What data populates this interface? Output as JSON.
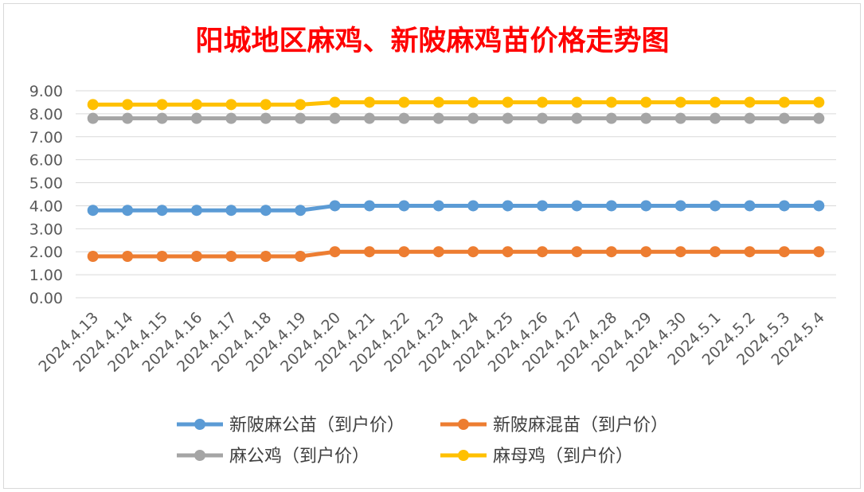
{
  "chart_data": {
    "type": "line",
    "title": "阳城地区麻鸡、新陂麻鸡苗价格走势图",
    "xlabel": "",
    "ylabel": "",
    "ylim": [
      0,
      9
    ],
    "ytick_step": 1,
    "ytick_labels": [
      "0.00",
      "1.00",
      "2.00",
      "3.00",
      "4.00",
      "5.00",
      "6.00",
      "7.00",
      "8.00",
      "9.00"
    ],
    "grid": "horizontal",
    "legend": "bottom",
    "categories": [
      "2024.4.13",
      "2024.4.14",
      "2024.4.15",
      "2024.4.16",
      "2024.4.17",
      "2024.4.18",
      "2024.4.19",
      "2024.4.20",
      "2024.4.21",
      "2024.4.22",
      "2024.4.23",
      "2024.4.24",
      "2024.4.25",
      "2024.4.26",
      "2024.4.27",
      "2024.4.28",
      "2024.4.29",
      "2024.4.30",
      "2024.5.1",
      "2024.5.2",
      "2024.5.3",
      "2024.5.4"
    ],
    "series": [
      {
        "name": "新陂麻公苗（到户价）",
        "color": "#5b9bd5",
        "values": [
          3.8,
          3.8,
          3.8,
          3.8,
          3.8,
          3.8,
          3.8,
          4.0,
          4.0,
          4.0,
          4.0,
          4.0,
          4.0,
          4.0,
          4.0,
          4.0,
          4.0,
          4.0,
          4.0,
          4.0,
          4.0,
          4.0
        ]
      },
      {
        "name": "新陂麻混苗（到户价）",
        "color": "#ed7d31",
        "values": [
          1.8,
          1.8,
          1.8,
          1.8,
          1.8,
          1.8,
          1.8,
          2.0,
          2.0,
          2.0,
          2.0,
          2.0,
          2.0,
          2.0,
          2.0,
          2.0,
          2.0,
          2.0,
          2.0,
          2.0,
          2.0,
          2.0
        ]
      },
      {
        "name": "麻公鸡（到户价）",
        "color": "#a5a5a5",
        "values": [
          7.8,
          7.8,
          7.8,
          7.8,
          7.8,
          7.8,
          7.8,
          7.8,
          7.8,
          7.8,
          7.8,
          7.8,
          7.8,
          7.8,
          7.8,
          7.8,
          7.8,
          7.8,
          7.8,
          7.8,
          7.8,
          7.8
        ]
      },
      {
        "name": "麻母鸡（到户价）",
        "color": "#ffc000",
        "values": [
          8.4,
          8.4,
          8.4,
          8.4,
          8.4,
          8.4,
          8.4,
          8.5,
          8.5,
          8.5,
          8.5,
          8.5,
          8.5,
          8.5,
          8.5,
          8.5,
          8.5,
          8.5,
          8.5,
          8.5,
          8.5,
          8.5
        ]
      }
    ],
    "colors": {
      "title": "#ff0000",
      "axis_text": "#595959",
      "grid": "#d9d9d9",
      "legend_text": "#404040"
    }
  }
}
